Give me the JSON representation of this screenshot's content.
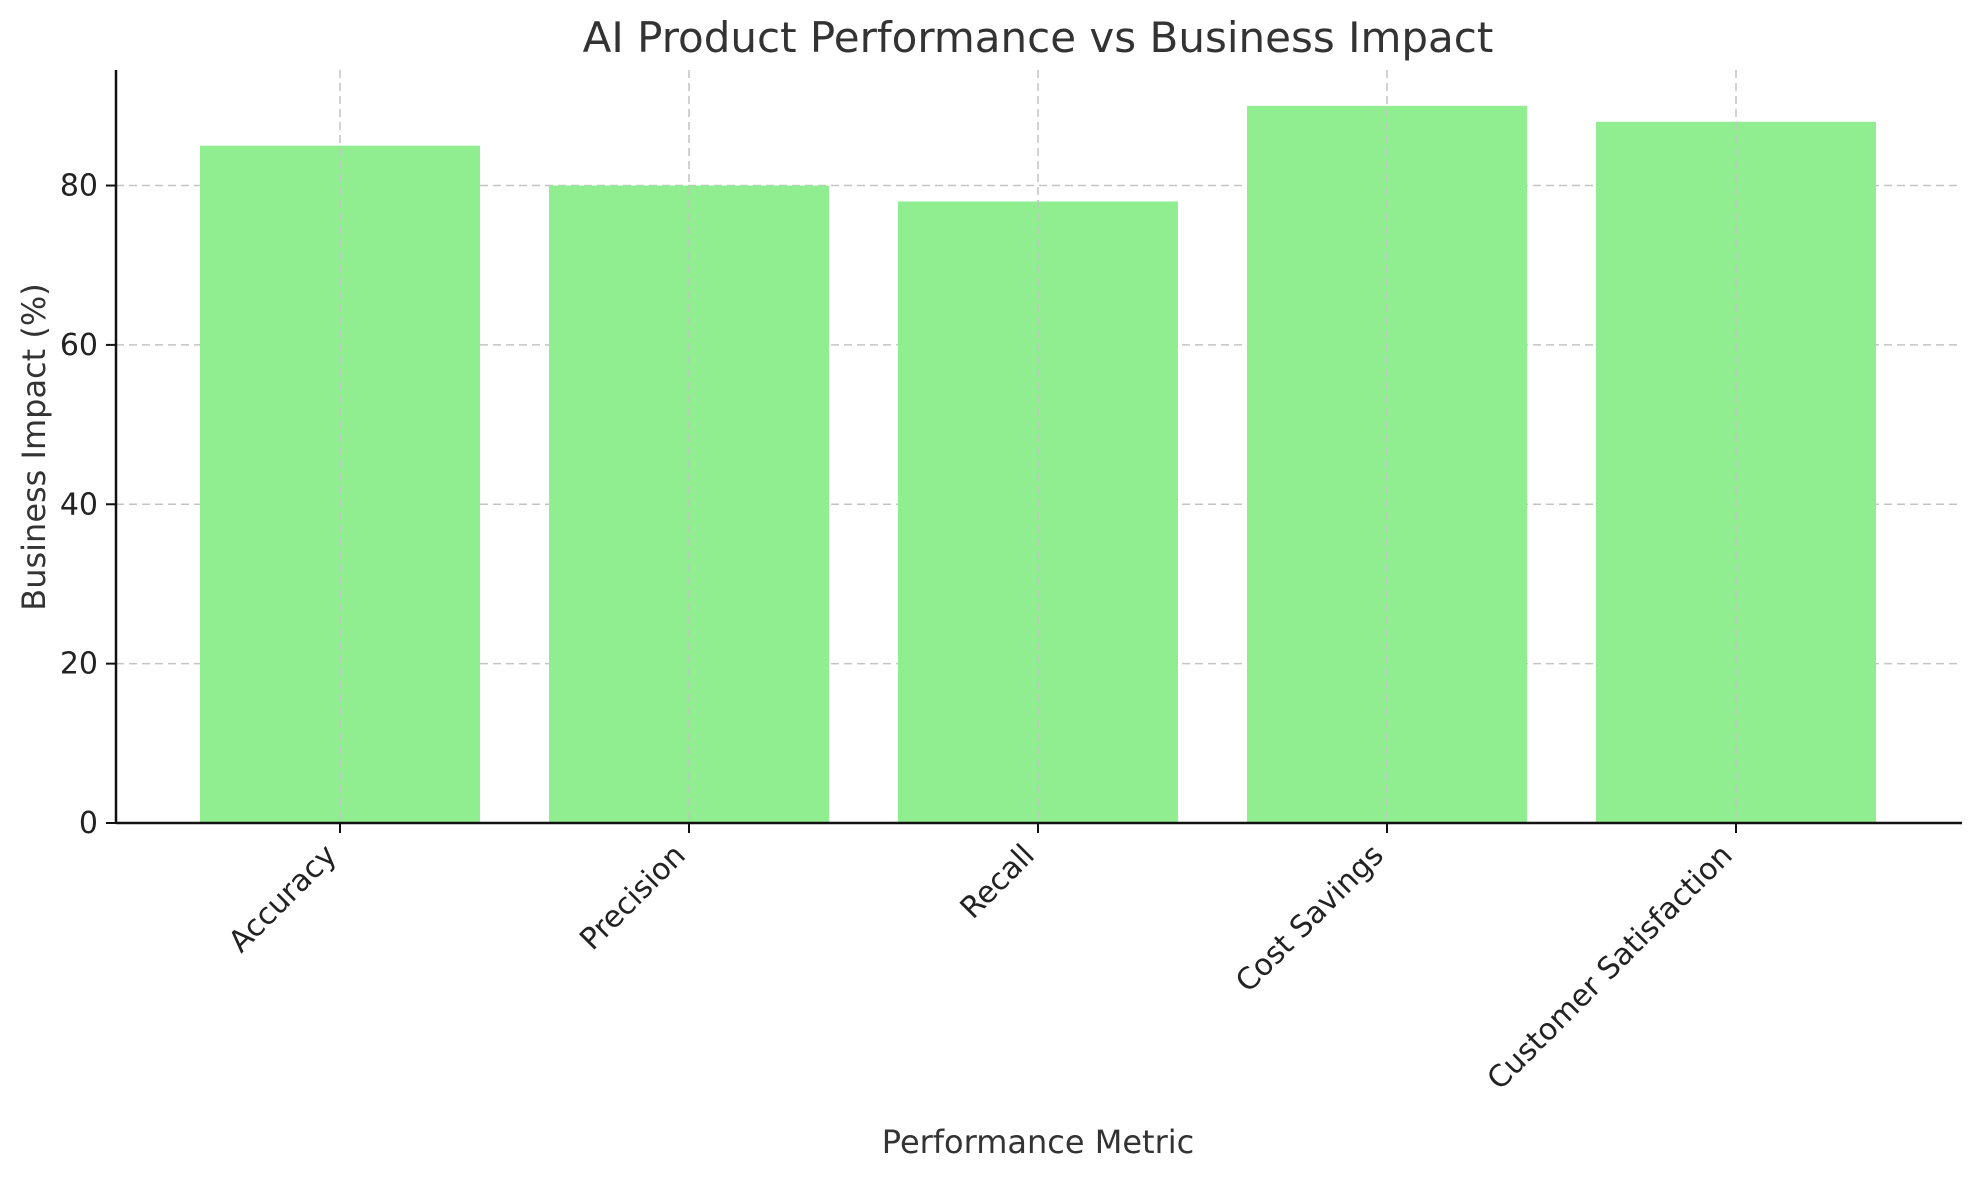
{
  "chart_data": {
    "type": "bar",
    "title": "AI Product Performance vs Business Impact",
    "xlabel": "Performance Metric",
    "ylabel": "Business Impact (%)",
    "categories": [
      "Accuracy",
      "Precision",
      "Recall",
      "Cost Savings",
      "Customer Satisfaction"
    ],
    "values": [
      85,
      80,
      78,
      90,
      88
    ],
    "ylim": [
      0,
      94.5
    ],
    "yticks": [
      0,
      20,
      40,
      60,
      80
    ],
    "grid": true,
    "bar_color": "#90ee90",
    "legend": "none"
  }
}
